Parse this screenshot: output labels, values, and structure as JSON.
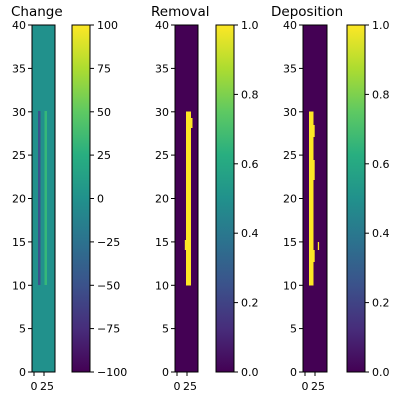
{
  "chart_data": [
    {
      "type": "heatmap",
      "title": "Change",
      "x_ticks": [
        "0",
        "25"
      ],
      "y_ticks": [
        "0",
        "5",
        "10",
        "15",
        "20",
        "25",
        "30",
        "35",
        "40"
      ],
      "ylim": [
        0,
        40
      ],
      "colorbar": {
        "colormap": "viridis",
        "range": [
          -100,
          100
        ],
        "ticks": [
          "100",
          "75",
          "50",
          "25",
          "0",
          "−25",
          "−50",
          "−75",
          "−100"
        ]
      },
      "background_value": 0,
      "features": [
        {
          "label": "negative-column",
          "x": 10,
          "y_range": [
            10,
            30
          ],
          "value": -50
        },
        {
          "label": "positive-column",
          "x": 18,
          "y_range": [
            10,
            30
          ],
          "value": 30
        }
      ]
    },
    {
      "type": "heatmap",
      "title": "Removal",
      "x_ticks": [
        "0",
        "25"
      ],
      "y_ticks": [
        "0",
        "5",
        "10",
        "15",
        "20",
        "25",
        "30",
        "35",
        "40"
      ],
      "ylim": [
        0,
        40
      ],
      "colorbar": {
        "colormap": "viridis",
        "range": [
          0,
          1
        ],
        "ticks": [
          "1.0",
          "0.8",
          "0.6",
          "0.4",
          "0.2",
          "0.0"
        ]
      },
      "background_value": 0,
      "features": [
        {
          "label": "removal-column",
          "y_range": [
            10,
            30
          ],
          "value": 1
        }
      ]
    },
    {
      "type": "heatmap",
      "title": "Deposition",
      "x_ticks": [
        "0",
        "25"
      ],
      "y_ticks": [
        "0",
        "5",
        "10",
        "15",
        "20",
        "25",
        "30",
        "35",
        "40"
      ],
      "ylim": [
        0,
        40
      ],
      "colorbar": {
        "colormap": "viridis",
        "range": [
          0,
          1
        ],
        "ticks": [
          "1.0",
          "0.8",
          "0.6",
          "0.4",
          "0.2",
          "0.0"
        ]
      },
      "background_value": 0,
      "features": [
        {
          "label": "deposition-column",
          "y_range": [
            10,
            30
          ],
          "value": 1
        }
      ]
    }
  ],
  "colors": {
    "viridis_low": "#440154",
    "viridis_mid": "#21918c",
    "viridis_high": "#fde725",
    "axis": "#000000"
  }
}
